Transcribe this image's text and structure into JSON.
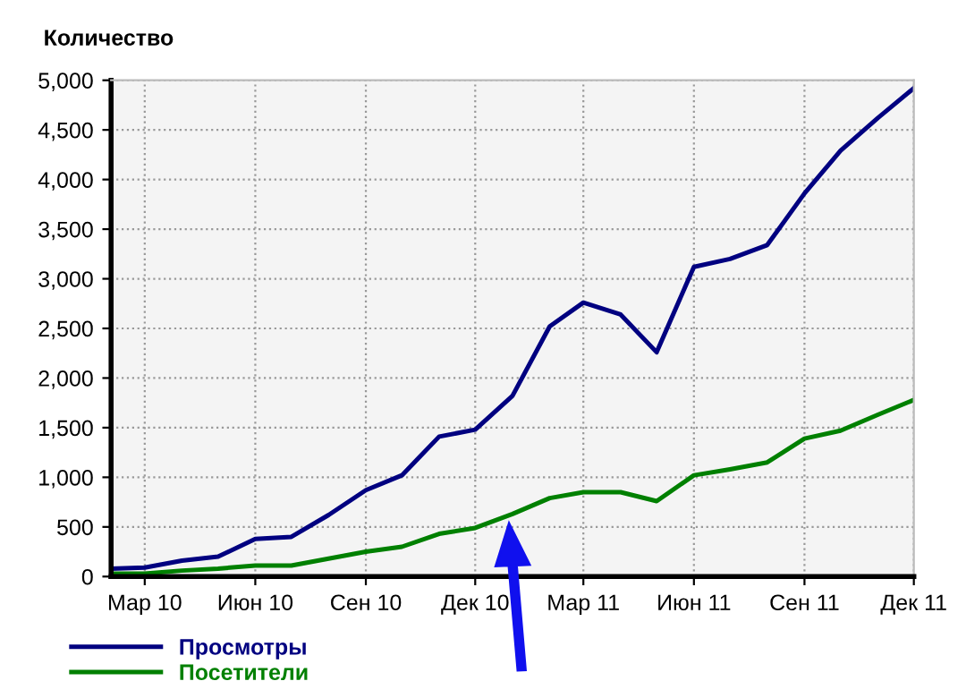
{
  "chart_data": {
    "type": "line",
    "ylabel": "Количество",
    "x": [
      "2010-02",
      "2010-03",
      "2010-04",
      "2010-05",
      "2010-06",
      "2010-07",
      "2010-08",
      "2010-09",
      "2010-10",
      "2010-11",
      "2010-12",
      "2011-01",
      "2011-02",
      "2011-03",
      "2011-04",
      "2011-05",
      "2011-06",
      "2011-07",
      "2011-08",
      "2011-09",
      "2011-10",
      "2011-11",
      "2011-12"
    ],
    "series": [
      {
        "name": "Просмотры",
        "color": "#000080",
        "values": [
          80,
          90,
          160,
          200,
          380,
          400,
          620,
          870,
          1020,
          1410,
          1480,
          1820,
          2520,
          2760,
          2640,
          2260,
          3120,
          3200,
          3340,
          3860,
          4290,
          4620,
          4920
        ]
      },
      {
        "name": "Посетители",
        "color": "#008000",
        "values": [
          30,
          30,
          60,
          80,
          110,
          110,
          180,
          250,
          300,
          430,
          490,
          630,
          790,
          850,
          850,
          760,
          1020,
          1080,
          1150,
          1390,
          1470,
          1630,
          1780
        ]
      }
    ],
    "xlim": [
      "2010-02",
      "2011-12"
    ],
    "xticks": [
      {
        "value": "2010-03",
        "label": "Мар 10"
      },
      {
        "value": "2010-06",
        "label": "Июн 10"
      },
      {
        "value": "2010-09",
        "label": "Сен 10"
      },
      {
        "value": "2010-12",
        "label": "Дек 10"
      },
      {
        "value": "2011-03",
        "label": "Мар 11"
      },
      {
        "value": "2011-06",
        "label": "Июн 11"
      },
      {
        "value": "2011-09",
        "label": "Сен 11"
      },
      {
        "value": "2011-12",
        "label": "Дек 11"
      }
    ],
    "ylim": [
      0,
      5000
    ],
    "yticks": [
      0,
      500,
      {
        "value": 1000,
        "label": "1,000"
      },
      {
        "value": 1500,
        "label": "1,500"
      },
      {
        "value": 2000,
        "label": "2,000"
      },
      {
        "value": 2500,
        "label": "2,500"
      },
      {
        "value": 3000,
        "label": "3,000"
      },
      {
        "value": 3500,
        "label": "3,500"
      },
      {
        "value": 4000,
        "label": "4,000"
      },
      {
        "value": 4500,
        "label": "4,500"
      },
      {
        "value": 5000,
        "label": "5,000"
      }
    ],
    "grid": true,
    "legend": "bottom left",
    "marker": "none",
    "line_style": "solid"
  }
}
